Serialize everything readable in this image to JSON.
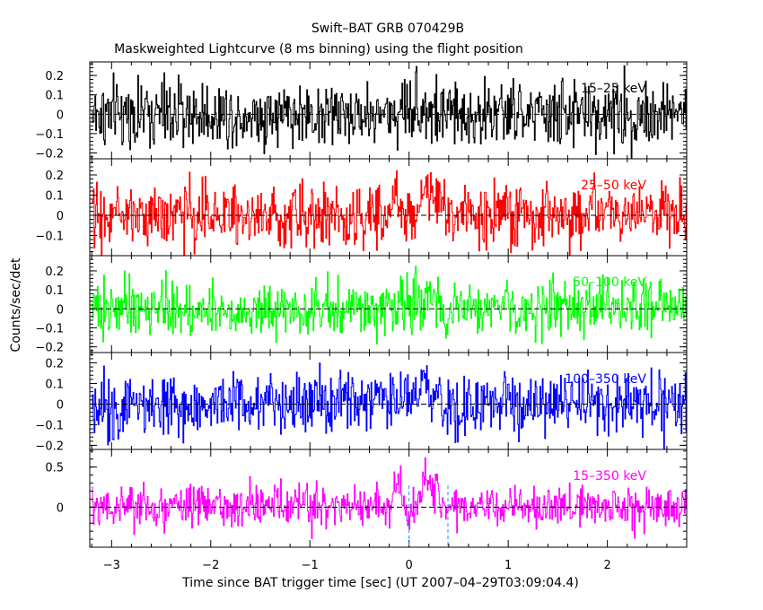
{
  "chart_data": {
    "type": "line",
    "title": "Swift–BAT GRB 070429B",
    "subtitle": "Maskweighted Lightcurve (8 ms binning) using the flight position",
    "xlabel": "Time since BAT trigger time [sec] (UT 2007–04–29T03:09:04.4)",
    "ylabel": "Counts/sec/det",
    "xlim": [
      -3.22,
      2.8
    ],
    "x_ticks": [
      -3,
      -2,
      -1,
      0,
      1,
      2
    ],
    "x_tick_labels": [
      "−3",
      "−2",
      "−1",
      "0",
      "1",
      "2"
    ],
    "bin_width_sec": 0.008,
    "grid": false,
    "reference_lines": {
      "y": 0,
      "x_dashed": [
        0.0,
        0.392
      ]
    },
    "panels": [
      {
        "band": "15–25 keV",
        "color": "#000000",
        "ylim": [
          -0.23,
          0.27
        ],
        "ticks": [
          -0.2,
          -0.1,
          0,
          0.1,
          0.2
        ],
        "tick_labels": [
          "−0.2",
          "−0.1",
          "0",
          "0.1",
          "0.2"
        ],
        "noise_sigma": 0.085,
        "burst": [
          {
            "t0": -0.15,
            "t1": 0.25,
            "amp": 0.05
          }
        ]
      },
      {
        "band": "25–50 keV",
        "color": "#ff0000",
        "ylim": [
          -0.2,
          0.28
        ],
        "ticks": [
          -0.1,
          0,
          0.1,
          0.2
        ],
        "tick_labels": [
          "−0.1",
          "0",
          "0.1",
          "0.2"
        ],
        "noise_sigma": 0.075,
        "burst": [
          {
            "t0": -0.2,
            "t1": -0.08,
            "amp": 0.16
          },
          {
            "t0": 0.05,
            "t1": 0.35,
            "amp": 0.14
          }
        ]
      },
      {
        "band": "50–100 keV",
        "color": "#00ff00",
        "ylim": [
          -0.23,
          0.28
        ],
        "ticks": [
          -0.2,
          -0.1,
          0,
          0.1,
          0.2
        ],
        "tick_labels": [
          "−0.2",
          "−0.1",
          "0",
          "0.1",
          "0.2"
        ],
        "noise_sigma": 0.07,
        "burst": [
          {
            "t0": -0.2,
            "t1": 0.35,
            "amp": 0.05
          }
        ]
      },
      {
        "band": "100–350 keV",
        "color": "#0000ff",
        "ylim": [
          -0.22,
          0.25
        ],
        "ticks": [
          -0.2,
          -0.1,
          0,
          0.1,
          0.2
        ],
        "tick_labels": [
          "−0.2",
          "−0.1",
          "0",
          "0.1",
          "0.2"
        ],
        "noise_sigma": 0.075,
        "burst": [
          {
            "t0": -0.1,
            "t1": 0.3,
            "amp": 0.03
          }
        ]
      },
      {
        "band": "15–350 keV",
        "color": "#ff00ff",
        "ylim": [
          -0.5,
          0.72
        ],
        "ticks": [
          0,
          0.5
        ],
        "tick_labels": [
          "0",
          "0.5"
        ],
        "noise_sigma": 0.13,
        "burst": [
          {
            "t0": -0.2,
            "t1": -0.05,
            "amp": 0.35
          },
          {
            "t0": 0.05,
            "t1": 0.32,
            "amp": 0.33
          }
        ]
      }
    ]
  }
}
